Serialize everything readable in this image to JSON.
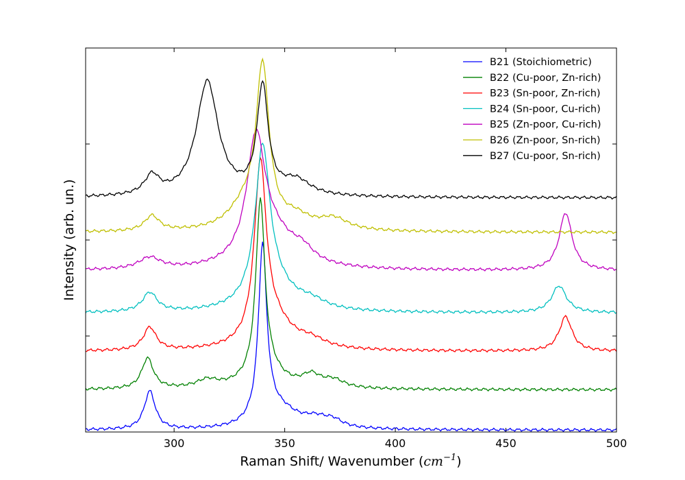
{
  "chart_data": {
    "type": "line",
    "title": "",
    "xlabel": "Raman Shift/ Wavenumber (",
    "xlabel_unit": "cm",
    "xlabel_unit_exp": "−1",
    "xlabel_close": ")",
    "ylabel": "Intensity (arb. un.)",
    "xlim": [
      260,
      500
    ],
    "ylim": [
      0,
      100
    ],
    "xticks": [
      300,
      350,
      400,
      450,
      500
    ],
    "xtick_labels": [
      "300",
      "350",
      "400",
      "450",
      "500"
    ],
    "yticks": [
      25,
      50,
      75
    ],
    "ytick_labels_visible": false,
    "legend_position": "top-right",
    "series": [
      {
        "name": "B21 (Stoichiometric)",
        "color": "#0000ff",
        "baseline": 0.5,
        "peaks": [
          {
            "c": 289,
            "h": 10,
            "w": 3.0
          },
          {
            "c": 340,
            "h": 44,
            "w": 2.2
          },
          {
            "c": 342,
            "h": 4,
            "w": 7
          },
          {
            "c": 364,
            "h": 2.5,
            "w": 8
          },
          {
            "c": 372,
            "h": 1.5,
            "w": 5
          },
          {
            "c": 350,
            "h": 3,
            "w": 8
          }
        ]
      },
      {
        "name": "B22 (Cu-poor, Zn-rich)",
        "color": "#008000",
        "baseline": 11,
        "peaks": [
          {
            "c": 288,
            "h": 8,
            "w": 3.2
          },
          {
            "c": 315,
            "h": 2,
            "w": 6
          },
          {
            "c": 339,
            "h": 45,
            "w": 2.4
          },
          {
            "c": 341,
            "h": 5,
            "w": 9
          },
          {
            "c": 362,
            "h": 3,
            "w": 5
          },
          {
            "c": 372,
            "h": 2,
            "w": 6
          }
        ]
      },
      {
        "name": "B23 (Sn-poor, Zn-rich)",
        "color": "#ff0000",
        "baseline": 21,
        "peaks": [
          {
            "c": 289,
            "h": 6,
            "w": 3.5
          },
          {
            "c": 339,
            "h": 45,
            "w": 3.2
          },
          {
            "c": 345,
            "h": 7,
            "w": 10
          },
          {
            "c": 362,
            "h": 2,
            "w": 8
          },
          {
            "c": 477,
            "h": 9,
            "w": 3.5
          }
        ]
      },
      {
        "name": "B24 (Sn-poor, Cu-rich)",
        "color": "#00bfbf",
        "baseline": 31,
        "peaks": [
          {
            "c": 289,
            "h": 5,
            "w": 4
          },
          {
            "c": 340,
            "h": 39,
            "w": 4
          },
          {
            "c": 345,
            "h": 6,
            "w": 11
          },
          {
            "c": 362,
            "h": 2,
            "w": 8
          },
          {
            "c": 474,
            "h": 7,
            "w": 4
          }
        ]
      },
      {
        "name": "B25 (Zn-poor, Cu-rich)",
        "color": "#bf00bf",
        "baseline": 42,
        "peaks": [
          {
            "c": 289,
            "h": 3,
            "w": 6
          },
          {
            "c": 337,
            "h": 31,
            "w": 5
          },
          {
            "c": 345,
            "h": 8,
            "w": 12
          },
          {
            "c": 358,
            "h": 3,
            "w": 6
          },
          {
            "c": 477,
            "h": 15,
            "w": 3.5
          }
        ]
      },
      {
        "name": "B26 (Zn-poor, Sn-rich)",
        "color": "#bfbf00",
        "baseline": 52,
        "peaks": [
          {
            "c": 290,
            "h": 4,
            "w": 4
          },
          {
            "c": 340,
            "h": 41,
            "w": 3.5
          },
          {
            "c": 332,
            "h": 6,
            "w": 9
          },
          {
            "c": 355,
            "h": 3,
            "w": 8
          },
          {
            "c": 372,
            "h": 3,
            "w": 8
          }
        ]
      },
      {
        "name": "B27 (Cu-poor, Sn-rich)",
        "color": "#000000",
        "baseline": 61,
        "peaks": [
          {
            "c": 290,
            "h": 5,
            "w": 4
          },
          {
            "c": 315,
            "h": 30,
            "w": 6
          },
          {
            "c": 340,
            "h": 28,
            "w": 3
          },
          {
            "c": 355,
            "h": 4,
            "w": 8
          }
        ]
      }
    ]
  }
}
